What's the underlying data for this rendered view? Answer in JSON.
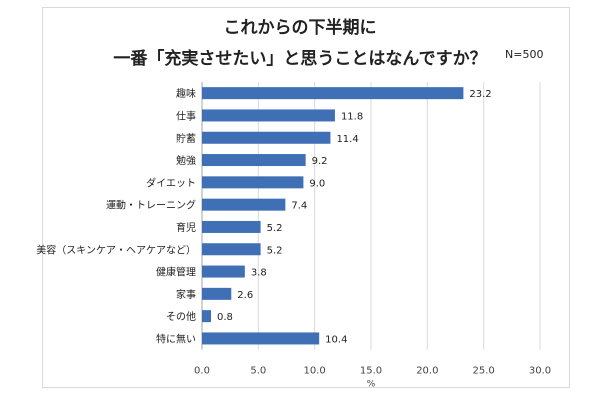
{
  "chart_data": {
    "type": "bar",
    "orientation": "horizontal",
    "title_line1": "これからの下半期に",
    "title_line2": "一番「充実させたい」と思うことはなんですか？",
    "sample_size": "N=500",
    "xlabel": "%",
    "xlim": [
      0,
      30
    ],
    "x_ticks": [
      "0.0",
      "5.0",
      "10.0",
      "15.0",
      "20.0",
      "25.0",
      "30.0"
    ],
    "grid": true,
    "bar_color": "#3f6fb5",
    "categories": [
      "趣味",
      "仕事",
      "貯蓄",
      "勉強",
      "ダイエット",
      "運動・トレーニング",
      "育児",
      "美容（スキンケア・ヘアケアなど）",
      "健康管理",
      "家事",
      "その他",
      "特に無い"
    ],
    "values": [
      23.2,
      11.8,
      11.4,
      9.2,
      9.0,
      7.4,
      5.2,
      5.2,
      3.8,
      2.6,
      0.8,
      10.4
    ],
    "value_labels": [
      "23.2",
      "11.8",
      "11.4",
      "9.2",
      "9.0",
      "7.4",
      "5.2",
      "5.2",
      "3.8",
      "2.6",
      "0.8",
      "10.4"
    ]
  }
}
